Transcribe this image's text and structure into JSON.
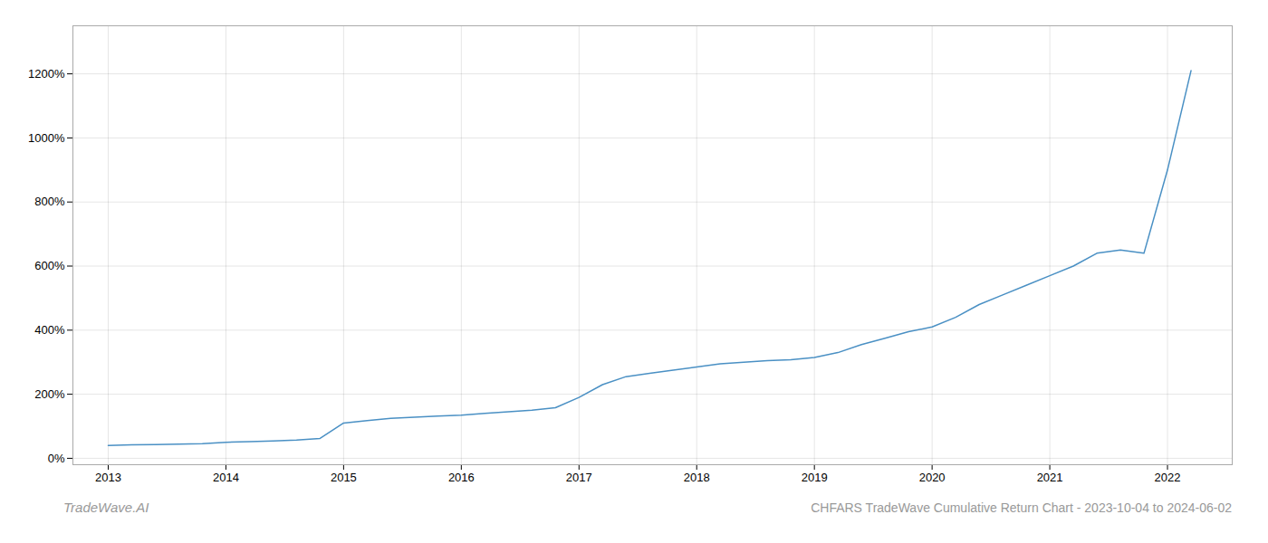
{
  "chart_data": {
    "type": "line",
    "title": "CHFARS TradeWave Cumulative Return Chart - 2023-10-04 to 2024-06-02",
    "annotations": [
      "TradeWave.AI"
    ],
    "color": "#4a90c4",
    "grid": true,
    "x": [
      2013.0,
      2013.2,
      2013.4,
      2013.6,
      2013.8,
      2014.0,
      2014.2,
      2014.4,
      2014.6,
      2014.8,
      2015.0,
      2015.2,
      2015.4,
      2015.6,
      2015.8,
      2016.0,
      2016.2,
      2016.4,
      2016.6,
      2016.8,
      2017.0,
      2017.2,
      2017.4,
      2017.6,
      2017.8,
      2018.0,
      2018.2,
      2018.4,
      2018.6,
      2018.8,
      2019.0,
      2019.2,
      2019.4,
      2019.6,
      2019.8,
      2020.0,
      2020.2,
      2020.4,
      2020.6,
      2020.8,
      2021.0,
      2021.2,
      2021.4,
      2021.6,
      2021.8,
      2022.0,
      2022.2
    ],
    "values": [
      40,
      42,
      43,
      44,
      46,
      50,
      52,
      54,
      57,
      62,
      110,
      118,
      125,
      128,
      132,
      135,
      140,
      145,
      150,
      158,
      190,
      230,
      255,
      265,
      275,
      285,
      295,
      300,
      305,
      308,
      315,
      330,
      355,
      375,
      395,
      410,
      440,
      480,
      510,
      540,
      570,
      600,
      640,
      650,
      640,
      900,
      1210
    ],
    "xlim": [
      2012.7,
      2022.55
    ],
    "xticks": [
      2013,
      2014,
      2015,
      2016,
      2017,
      2018,
      2019,
      2020,
      2021,
      2022
    ],
    "ylim": [
      -20,
      1350
    ],
    "yticks": [
      {
        "value": 0,
        "label": "0%"
      },
      {
        "value": 200,
        "label": "200%"
      },
      {
        "value": 400,
        "label": "400%"
      },
      {
        "value": 600,
        "label": "600%"
      },
      {
        "value": 800,
        "label": "800%"
      },
      {
        "value": 1000,
        "label": "1000%"
      },
      {
        "value": 1200,
        "label": "1200%"
      }
    ]
  }
}
